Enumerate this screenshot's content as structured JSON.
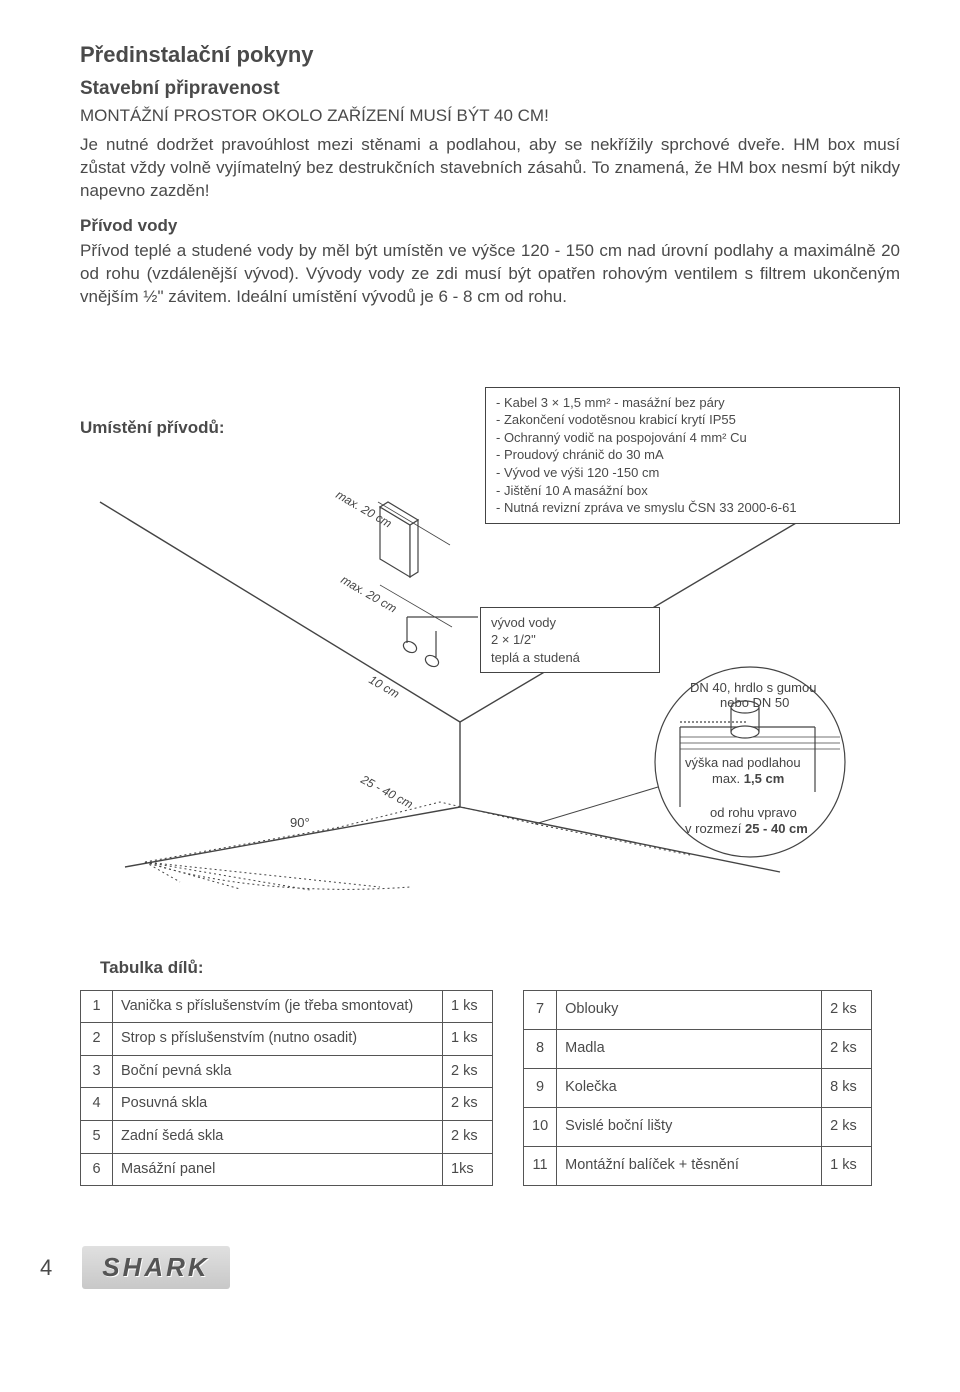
{
  "header": {
    "title": "Předinstalační pokyny",
    "subtitle": "Stavební připravenost",
    "caps_line": "MONTÁŽNÍ PROSTOR OKOLO ZAŘÍZENÍ MUSÍ BÝT 40 CM!",
    "para1": "Je nutné dodržet pravoúhlost mezi stěnami a podlahou, aby se nekřížily sprchové dveře. HM box musí zůstat vždy volně vyjímatelný bez destrukčních stavebních zásahů. To znamená, že HM box nesmí být nikdy napevno zazděn!",
    "sub2": "Přívod vody",
    "para2": "Přívod teplé a studené vody by měl být umístěn ve výšce 120 - 150 cm nad úrovní podlahy a maximálně 20 od rohu (vzdálenější vývod). Vývody vody ze zdi musí být opatřen rohovým ventilem s filtrem ukončeným vnějším ½\" závitem. Ideální umístění vývodů je 6 - 8 cm od rohu."
  },
  "diagram": {
    "placement_label": "Umístění přívodů:",
    "dim_max20_a": "max. 20 cm",
    "dim_max20_b": "max. 20 cm",
    "dim_10": "10 cm",
    "dim_25_40": "25 - 40 cm",
    "angle": "90°",
    "box1_lines": [
      "- Kabel   3 × 1,5 mm² - masážní bez páry",
      "- Zakončení vodotěsnou krabicí krytí IP55",
      "- Ochranný vodič na pospojování 4 mm² Cu",
      "- Proudový chránič do 30 mA",
      "- Vývod ve výši 120 -150  cm",
      "- Jištění  10 A masážní box",
      "- Nutná revizní zpráva ve smyslu ČSN 33 2000-6-61"
    ],
    "box2_l1": "vývod vody",
    "box2_l2": "2 × 1/2\"",
    "box2_l3": "teplá a studená",
    "drain_l1": "DN 40, hrdlo s gumou",
    "drain_l2": "nebo DN 50",
    "drain_l3": "výška nad podlahou",
    "drain_l4a": "max. ",
    "drain_l4b": "1,5 cm",
    "drain_l5": "od rohu vpravo",
    "drain_l6a": "v rozmezí ",
    "drain_l6b": "25 - 40 cm"
  },
  "parts": {
    "heading": "Tabulka dílů:",
    "left": [
      {
        "n": "1",
        "d": "Vanička s příslušenstvím (je třeba smontovat)",
        "q": "1 ks"
      },
      {
        "n": "2",
        "d": "Strop s příslušenstvím (nutno osadit)",
        "q": "1 ks"
      },
      {
        "n": "3",
        "d": "Boční pevná skla",
        "q": "2 ks"
      },
      {
        "n": "4",
        "d": "Posuvná skla",
        "q": "2 ks"
      },
      {
        "n": "5",
        "d": "Zadní šedá skla",
        "q": "2 ks"
      },
      {
        "n": "6",
        "d": "Masážní panel",
        "q": "1ks"
      }
    ],
    "right": [
      {
        "n": "7",
        "d": "Oblouky",
        "q": "2 ks"
      },
      {
        "n": "8",
        "d": "Madla",
        "q": "2 ks"
      },
      {
        "n": "9",
        "d": "Kolečka",
        "q": "8 ks"
      },
      {
        "n": "10",
        "d": "Svislé boční lišty",
        "q": "2 ks"
      },
      {
        "n": "11",
        "d": "Montážní balíček + těsnění",
        "q": "1 ks"
      }
    ]
  },
  "footer": {
    "page": "4",
    "logo": "SHARK"
  },
  "style": {
    "text_color": "#4a4a4a",
    "border_color": "#555555",
    "background": "#ffffff",
    "font_size_body": 17,
    "font_size_table": 14.5
  }
}
